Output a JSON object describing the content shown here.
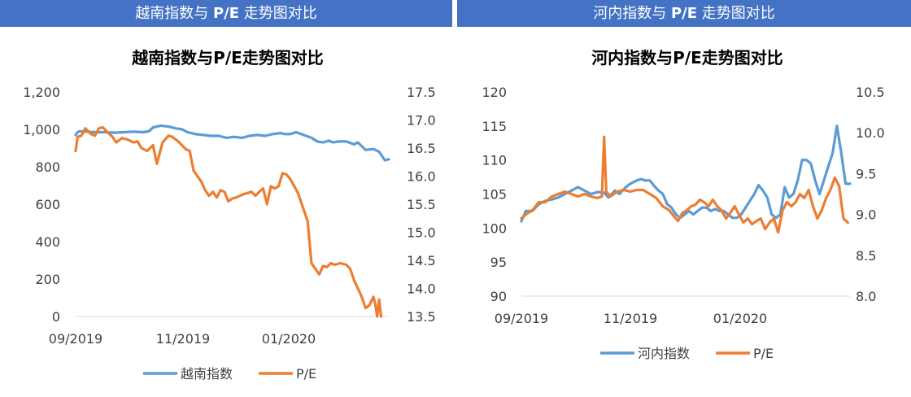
{
  "banners": [
    {
      "prefix": "越南指数与 ",
      "bold": "P/E",
      "suffix": " 走势图对比"
    },
    {
      "prefix": "河内指数与 ",
      "bold": "P/E",
      "suffix": " 走势图对比"
    }
  ],
  "colors": {
    "banner": "#4472C4",
    "index_line": "#5B9BD5",
    "pe_line": "#ED7D31"
  },
  "chart_data": [
    {
      "type": "line",
      "title": "越南指数与P/E走势图对比",
      "x": [
        "09/2019",
        "11/2019",
        "01/2020"
      ],
      "y_left": {
        "lim": [
          0,
          1200
        ],
        "ticks": [
          "0",
          "200",
          "400",
          "600",
          "800",
          "1,000",
          "1,200"
        ]
      },
      "y_right": {
        "lim": [
          13.5,
          17.5
        ],
        "ticks": [
          "13.5",
          "14.0",
          "14.5",
          "15.0",
          "15.5",
          "16.0",
          "16.5",
          "17.0",
          "17.5"
        ]
      },
      "legend_position": "bottom",
      "series": [
        {
          "name": "越南指数",
          "axis": "left",
          "color": "#5B9BD5",
          "points": [
            [
              0,
              970
            ],
            [
              1,
              985
            ],
            [
              2,
              990
            ],
            [
              5,
              988
            ],
            [
              10,
              985
            ],
            [
              15,
              985
            ],
            [
              20,
              982
            ],
            [
              25,
              985
            ],
            [
              30,
              988
            ],
            [
              35,
              985
            ],
            [
              38,
              990
            ],
            [
              40,
              1010
            ],
            [
              44,
              1020
            ],
            [
              48,
              1015
            ],
            [
              52,
              1005
            ],
            [
              55,
              1000
            ],
            [
              58,
              985
            ],
            [
              62,
              975
            ],
            [
              66,
              970
            ],
            [
              70,
              965
            ],
            [
              74,
              965
            ],
            [
              78,
              955
            ],
            [
              82,
              960
            ],
            [
              86,
              955
            ],
            [
              90,
              965
            ],
            [
              94,
              970
            ],
            [
              98,
              965
            ],
            [
              102,
              975
            ],
            [
              106,
              980
            ],
            [
              108,
              975
            ],
            [
              111,
              975
            ],
            [
              114,
              985
            ],
            [
              118,
              970
            ],
            [
              122,
              955
            ],
            [
              125,
              935
            ],
            [
              128,
              930
            ],
            [
              131,
              940
            ],
            [
              133,
              930
            ],
            [
              136,
              935
            ],
            [
              140,
              935
            ],
            [
              144,
              920
            ],
            [
              146,
              930
            ],
            [
              150,
              890
            ],
            [
              154,
              895
            ],
            [
              157,
              880
            ],
            [
              160,
              835
            ],
            [
              162,
              840
            ]
          ]
        },
        {
          "name": "P/E",
          "axis": "right",
          "color": "#ED7D31",
          "points": [
            [
              0,
              16.45
            ],
            [
              1,
              16.7
            ],
            [
              3,
              16.72
            ],
            [
              5,
              16.85
            ],
            [
              8,
              16.75
            ],
            [
              10,
              16.72
            ],
            [
              12,
              16.85
            ],
            [
              14,
              16.87
            ],
            [
              16,
              16.8
            ],
            [
              19,
              16.7
            ],
            [
              21,
              16.6
            ],
            [
              24,
              16.68
            ],
            [
              27,
              16.65
            ],
            [
              30,
              16.6
            ],
            [
              32,
              16.62
            ],
            [
              34,
              16.5
            ],
            [
              37,
              16.45
            ],
            [
              40,
              16.55
            ],
            [
              42,
              16.22
            ],
            [
              45,
              16.6
            ],
            [
              48,
              16.72
            ],
            [
              50,
              16.7
            ],
            [
              53,
              16.62
            ],
            [
              55,
              16.55
            ],
            [
              57,
              16.48
            ],
            [
              59,
              16.45
            ],
            [
              61,
              16.1
            ],
            [
              63,
              16.0
            ],
            [
              65,
              15.9
            ],
            [
              67,
              15.75
            ],
            [
              69,
              15.65
            ],
            [
              71,
              15.72
            ],
            [
              73,
              15.62
            ],
            [
              75,
              15.75
            ],
            [
              77,
              15.72
            ],
            [
              79,
              15.55
            ],
            [
              81,
              15.6
            ],
            [
              83,
              15.62
            ],
            [
              85,
              15.65
            ],
            [
              87,
              15.68
            ],
            [
              89,
              15.7
            ],
            [
              91,
              15.72
            ],
            [
              93,
              15.65
            ],
            [
              95,
              15.72
            ],
            [
              97,
              15.78
            ],
            [
              99,
              15.5
            ],
            [
              101,
              15.82
            ],
            [
              103,
              15.78
            ],
            [
              105,
              15.82
            ],
            [
              107,
              16.05
            ],
            [
              109,
              16.03
            ],
            [
              111,
              15.95
            ],
            [
              115,
              15.7
            ],
            [
              118,
              15.4
            ],
            [
              120,
              15.2
            ],
            [
              122,
              14.45
            ],
            [
              124,
              14.35
            ],
            [
              126,
              14.25
            ],
            [
              128,
              14.4
            ],
            [
              130,
              14.38
            ],
            [
              132,
              14.45
            ],
            [
              134,
              14.42
            ],
            [
              137,
              14.45
            ],
            [
              140,
              14.42
            ],
            [
              142,
              14.35
            ],
            [
              144,
              14.15
            ],
            [
              146,
              14.0
            ],
            [
              148,
              13.85
            ],
            [
              150,
              13.65
            ],
            [
              152,
              13.7
            ],
            [
              154,
              13.85
            ],
            [
              155,
              13.72
            ],
            [
              156,
              13.5
            ],
            [
              157,
              13.8
            ],
            [
              158,
              13.5
            ]
          ]
        }
      ]
    },
    {
      "type": "line",
      "title": "河内指数与P/E走势图对比",
      "x": [
        "09/2019",
        "11/2019",
        "01/2020"
      ],
      "y_left": {
        "lim": [
          90,
          120
        ],
        "ticks": [
          "90",
          "95",
          "100",
          "105",
          "110",
          "115",
          "120"
        ]
      },
      "y_right": {
        "lim": [
          8.0,
          10.5
        ],
        "ticks": [
          "8.0",
          "8.5",
          "9.0",
          "9.5",
          "10.0",
          "10.5"
        ]
      },
      "legend_position": "bottom",
      "series": [
        {
          "name": "河内指数",
          "axis": "left",
          "color": "#5B9BD5",
          "points": [
            [
              0,
              101
            ],
            [
              2,
              102.5
            ],
            [
              5,
              102.5
            ],
            [
              8,
              103.5
            ],
            [
              11,
              104
            ],
            [
              14,
              104.2
            ],
            [
              17,
              104.5
            ],
            [
              20,
              105
            ],
            [
              23,
              105.5
            ],
            [
              26,
              106
            ],
            [
              29,
              105.5
            ],
            [
              32,
              105
            ],
            [
              35,
              105.3
            ],
            [
              38,
              105.2
            ],
            [
              40,
              104.5
            ],
            [
              43,
              105.5
            ],
            [
              45,
              105
            ],
            [
              48,
              106
            ],
            [
              50,
              106.5
            ],
            [
              53,
              107
            ],
            [
              55,
              107.2
            ],
            [
              57,
              107
            ],
            [
              59,
              107
            ],
            [
              61,
              106.2
            ],
            [
              63,
              105.5
            ],
            [
              65,
              105
            ],
            [
              67,
              103.5
            ],
            [
              69,
              103
            ],
            [
              71,
              102
            ],
            [
              73,
              101.5
            ],
            [
              75,
              102
            ],
            [
              77,
              102.5
            ],
            [
              79,
              102
            ],
            [
              81,
              102.5
            ],
            [
              83,
              103
            ],
            [
              85,
              103
            ],
            [
              87,
              102.5
            ],
            [
              89,
              102.8
            ],
            [
              91,
              102.5
            ],
            [
              93,
              102.5
            ],
            [
              95,
              102
            ],
            [
              97,
              101.5
            ],
            [
              99,
              101.5
            ],
            [
              101,
              102
            ],
            [
              103,
              103
            ],
            [
              105,
              104
            ],
            [
              107,
              105
            ],
            [
              109,
              106.3
            ],
            [
              111,
              105.5
            ],
            [
              113,
              104.5
            ],
            [
              115,
              102
            ],
            [
              117,
              101.5
            ],
            [
              119,
              102
            ],
            [
              121,
              106
            ],
            [
              123,
              104.5
            ],
            [
              125,
              105
            ],
            [
              127,
              107
            ],
            [
              129,
              110
            ],
            [
              131,
              110
            ],
            [
              133,
              109.5
            ],
            [
              135,
              107
            ],
            [
              137,
              105
            ],
            [
              139,
              107
            ],
            [
              141,
              109
            ],
            [
              143,
              111
            ],
            [
              145,
              115
            ],
            [
              147,
              111
            ],
            [
              149,
              106.5
            ],
            [
              151,
              106.5
            ]
          ]
        },
        {
          "name": "P/E",
          "axis": "right",
          "color": "#ED7D31",
          "points": [
            [
              0,
              8.95
            ],
            [
              2,
              9.0
            ],
            [
              5,
              9.05
            ],
            [
              8,
              9.15
            ],
            [
              11,
              9.15
            ],
            [
              14,
              9.22
            ],
            [
              17,
              9.25
            ],
            [
              20,
              9.28
            ],
            [
              23,
              9.25
            ],
            [
              26,
              9.22
            ],
            [
              29,
              9.25
            ],
            [
              32,
              9.22
            ],
            [
              35,
              9.2
            ],
            [
              37,
              9.22
            ],
            [
              38,
              9.95
            ],
            [
              39,
              9.28
            ],
            [
              41,
              9.22
            ],
            [
              44,
              9.28
            ],
            [
              47,
              9.3
            ],
            [
              50,
              9.28
            ],
            [
              53,
              9.3
            ],
            [
              56,
              9.3
            ],
            [
              59,
              9.25
            ],
            [
              62,
              9.2
            ],
            [
              65,
              9.1
            ],
            [
              68,
              9.05
            ],
            [
              70,
              8.98
            ],
            [
              72,
              8.92
            ],
            [
              74,
              9.02
            ],
            [
              76,
              9.05
            ],
            [
              78,
              9.1
            ],
            [
              80,
              9.12
            ],
            [
              82,
              9.18
            ],
            [
              84,
              9.15
            ],
            [
              86,
              9.1
            ],
            [
              88,
              9.18
            ],
            [
              90,
              9.1
            ],
            [
              92,
              9.05
            ],
            [
              94,
              8.95
            ],
            [
              96,
              9.02
            ],
            [
              98,
              9.1
            ],
            [
              100,
              9.0
            ],
            [
              102,
              8.9
            ],
            [
              104,
              8.95
            ],
            [
              106,
              8.88
            ],
            [
              108,
              8.92
            ],
            [
              110,
              8.95
            ],
            [
              112,
              8.82
            ],
            [
              114,
              8.9
            ],
            [
              116,
              8.95
            ],
            [
              118,
              8.78
            ],
            [
              120,
              9.05
            ],
            [
              122,
              9.15
            ],
            [
              124,
              9.1
            ],
            [
              126,
              9.15
            ],
            [
              128,
              9.25
            ],
            [
              130,
              9.2
            ],
            [
              132,
              9.3
            ],
            [
              134,
              9.1
            ],
            [
              136,
              8.95
            ],
            [
              138,
              9.05
            ],
            [
              140,
              9.2
            ],
            [
              142,
              9.3
            ],
            [
              144,
              9.45
            ],
            [
              146,
              9.35
            ],
            [
              148,
              8.95
            ],
            [
              150,
              8.9
            ]
          ]
        }
      ]
    }
  ]
}
